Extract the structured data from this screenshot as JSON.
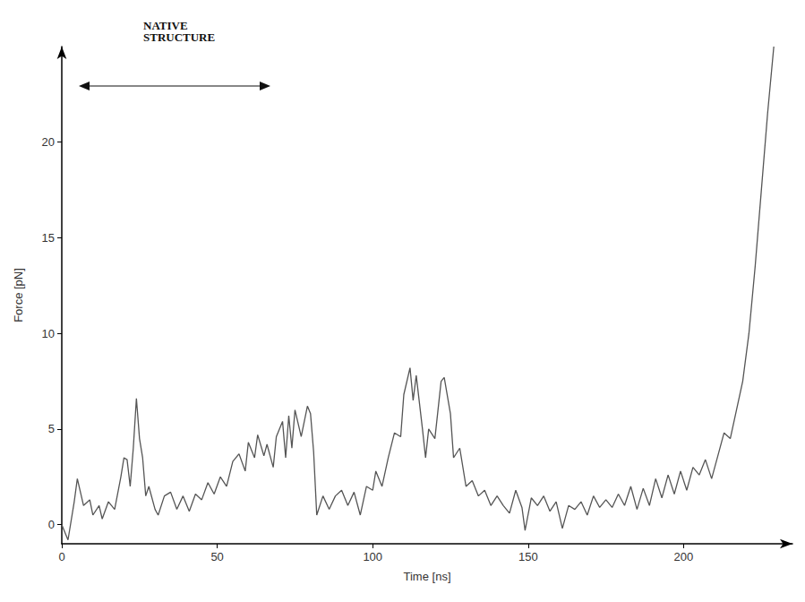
{
  "chart_data": {
    "type": "line",
    "x_label": "Time [ns]",
    "y_label": "Force [pN]",
    "annotations": [
      "NATIVE STRUCTURE"
    ],
    "xlim": [
      0,
      235
    ],
    "xticks": [
      0,
      50,
      100,
      150,
      200
    ],
    "ylim": [
      -1,
      25
    ],
    "yticks": [
      0,
      5,
      10,
      15,
      20
    ],
    "grid": false,
    "color": "#555555",
    "x": [
      0,
      2,
      4,
      5,
      7,
      9,
      10,
      12,
      13,
      15,
      17,
      19,
      20,
      21,
      22,
      23,
      24,
      25,
      26,
      27,
      28,
      30,
      31,
      33,
      35,
      37,
      39,
      41,
      43,
      45,
      47,
      49,
      51,
      53,
      55,
      57,
      59,
      60,
      62,
      63,
      65,
      66,
      68,
      69,
      71,
      72,
      73,
      74,
      75,
      77,
      79,
      80,
      81,
      82,
      84,
      86,
      88,
      90,
      92,
      94,
      96,
      98,
      100,
      101,
      103,
      105,
      107,
      109,
      110,
      112,
      113,
      114,
      116,
      117,
      118,
      120,
      122,
      123,
      125,
      126,
      128,
      130,
      132,
      134,
      136,
      138,
      140,
      142,
      144,
      146,
      148,
      149,
      151,
      153,
      155,
      157,
      159,
      161,
      163,
      165,
      167,
      169,
      171,
      173,
      175,
      177,
      179,
      181,
      183,
      185,
      187,
      189,
      191,
      193,
      195,
      197,
      199,
      201,
      203,
      205,
      207,
      209,
      211,
      213,
      215,
      217,
      219,
      221,
      223,
      225,
      227,
      229
    ],
    "values": [
      0,
      -0.8,
      1.2,
      2.4,
      1.0,
      1.3,
      0.5,
      1.0,
      0.3,
      1.2,
      0.8,
      2.5,
      3.5,
      3.4,
      2.0,
      4.0,
      6.6,
      4.5,
      3.5,
      1.5,
      2.0,
      0.8,
      0.5,
      1.5,
      1.7,
      0.8,
      1.5,
      0.7,
      1.6,
      1.3,
      2.2,
      1.6,
      2.5,
      2.0,
      3.3,
      3.7,
      2.8,
      4.3,
      3.5,
      4.7,
      3.6,
      4.2,
      3.0,
      4.6,
      5.4,
      3.5,
      5.7,
      4.0,
      6.0,
      4.6,
      6.2,
      5.8,
      3.8,
      0.5,
      1.5,
      0.8,
      1.5,
      1.8,
      1.0,
      1.7,
      0.5,
      2.0,
      1.8,
      2.8,
      2.0,
      3.5,
      4.8,
      4.6,
      6.8,
      8.2,
      6.5,
      7.8,
      5.0,
      3.5,
      5.0,
      4.5,
      7.5,
      7.7,
      5.8,
      3.5,
      4.0,
      2.0,
      2.3,
      1.5,
      1.8,
      1.0,
      1.5,
      1.0,
      0.6,
      1.8,
      0.9,
      -0.3,
      1.4,
      1.0,
      1.5,
      0.7,
      1.2,
      -0.2,
      1.0,
      0.8,
      1.2,
      0.5,
      1.5,
      0.9,
      1.3,
      0.9,
      1.6,
      1.0,
      2.0,
      0.8,
      1.9,
      1.0,
      2.4,
      1.4,
      2.6,
      1.6,
      2.8,
      1.8,
      3.0,
      2.6,
      3.4,
      2.4,
      3.6,
      4.8,
      4.5,
      6.0,
      7.5,
      10.0,
      13.5,
      17.5,
      21.5,
      25
    ]
  }
}
